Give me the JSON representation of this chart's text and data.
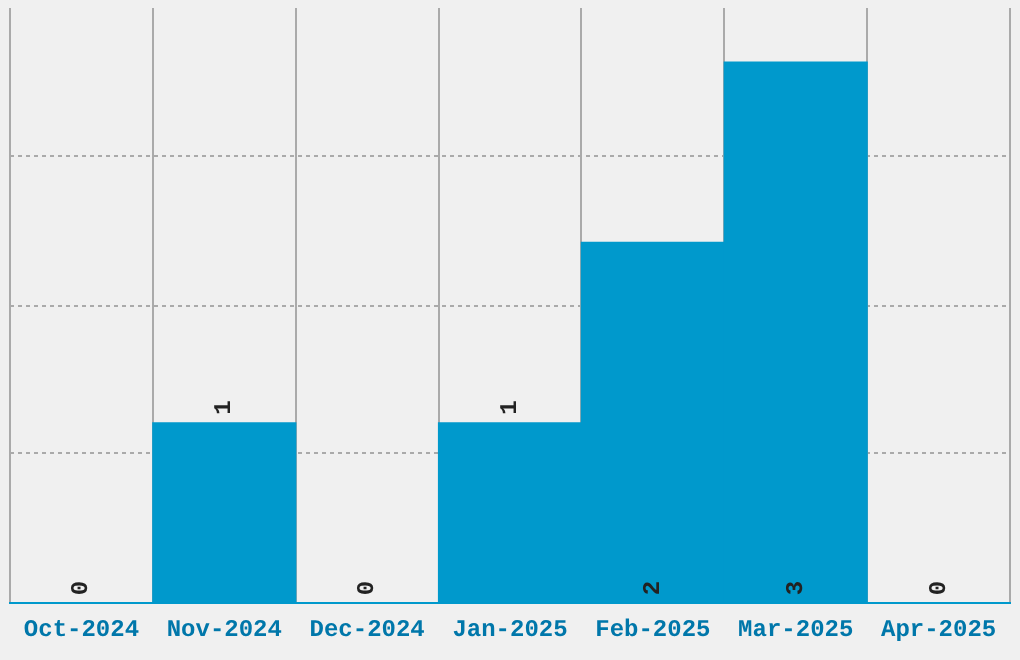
{
  "chart_data": {
    "type": "bar",
    "categories": [
      "Oct-2024",
      "Nov-2024",
      "Dec-2024",
      "Jan-2025",
      "Feb-2025",
      "Mar-2025",
      "Apr-2025"
    ],
    "values": [
      0,
      1,
      0,
      1,
      2,
      3,
      0
    ],
    "color": "#0099cc",
    "ylim": [
      0,
      3.3
    ],
    "yticks": [
      {
        "value": 0,
        "label": null
      },
      {
        "value": 0.83,
        "label": null
      },
      {
        "value": 1.65,
        "label": null
      },
      {
        "value": 2.48,
        "label": null
      }
    ],
    "tick_labels": "x",
    "grid": true,
    "data_labels": true,
    "legend": false
  }
}
